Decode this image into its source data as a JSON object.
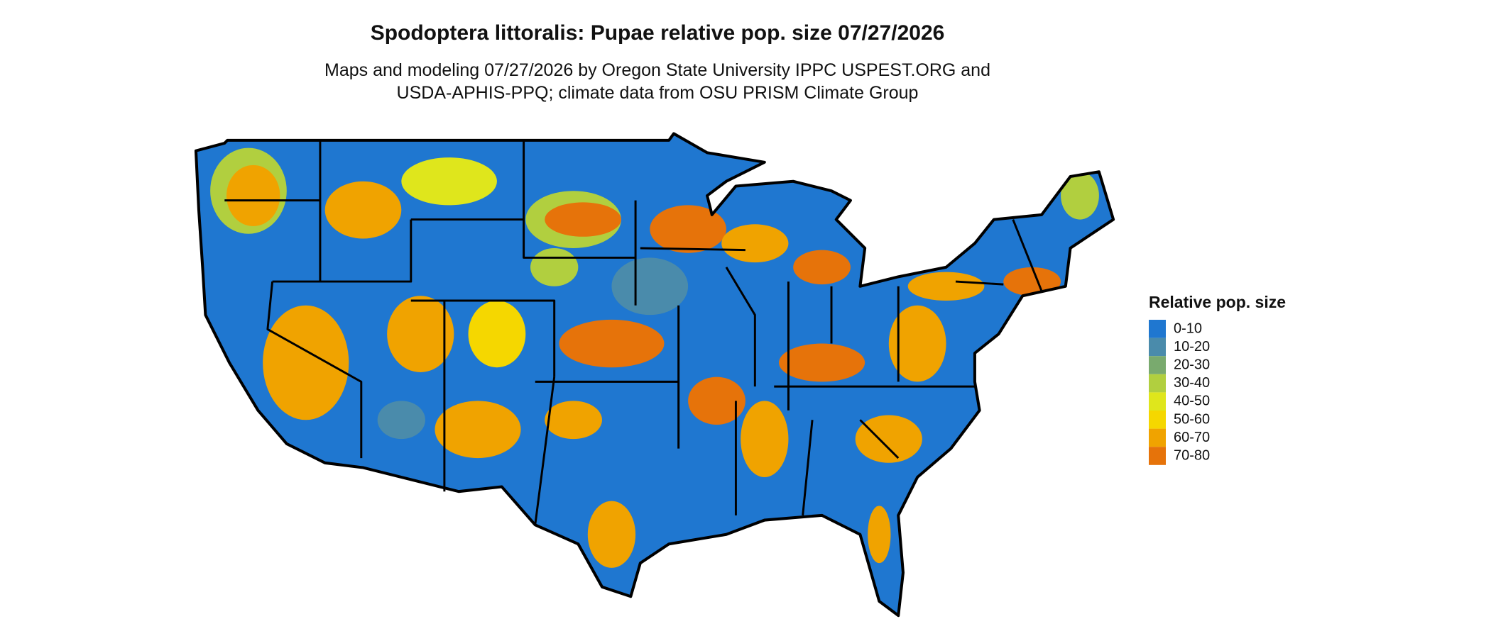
{
  "title": "Spodoptera littoralis: Pupae relative pop. size 07/27/2026",
  "subtitle": [
    "Maps and modeling 07/27/2026 by Oregon State University IPPC USPEST.ORG and",
    "USDA-APHIS-PPQ; climate data from OSU PRISM Climate Group"
  ],
  "legend": {
    "title": "Relative pop. size",
    "items": [
      {
        "label": "0-10",
        "color": "#1f77d0"
      },
      {
        "label": "10-20",
        "color": "#4a8bab"
      },
      {
        "label": "20-30",
        "color": "#79aa6e"
      },
      {
        "label": "30-40",
        "color": "#b1cf3f"
      },
      {
        "label": "40-50",
        "color": "#dfe61c"
      },
      {
        "label": "50-60",
        "color": "#f5d700"
      },
      {
        "label": "60-70",
        "color": "#f0a300"
      },
      {
        "label": "70-80",
        "color": "#e6730a"
      }
    ]
  }
}
